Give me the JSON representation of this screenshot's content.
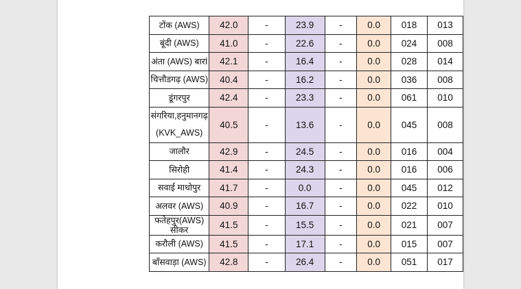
{
  "table": {
    "rows": [
      {
        "station": "टोंक (AWS)",
        "v1": "42.0",
        "v2": "-",
        "v3": "23.9",
        "v4": "-",
        "v5": "0.0",
        "v6": "018",
        "v7": "013"
      },
      {
        "station": "बूंदी (AWS)",
        "v1": "41.0",
        "v2": "-",
        "v3": "22.6",
        "v4": "-",
        "v5": "0.0",
        "v6": "024",
        "v7": "008"
      },
      {
        "station": "अंता (AWS) बारां",
        "v1": "42.1",
        "v2": "-",
        "v3": "16.4",
        "v4": "-",
        "v5": "0.0",
        "v6": "028",
        "v7": "014"
      },
      {
        "station": "चित्तौडगढ़ (AWS)",
        "v1": "40.4",
        "v2": "-",
        "v3": "16.2",
        "v4": "-",
        "v5": "0.0",
        "v6": "036",
        "v7": "008"
      },
      {
        "station": "डूंगरपुर",
        "v1": "42.4",
        "v2": "-",
        "v3": "23.3",
        "v4": "-",
        "v5": "0.0",
        "v6": "061",
        "v7": "010"
      },
      {
        "station": "संगरिया,हनुमानगढ़ (KVK_AWS)",
        "v1": "40.5",
        "v2": "-",
        "v3": "13.6",
        "v4": "-",
        "v5": "0.0",
        "v6": "045",
        "v7": "008"
      },
      {
        "station": "जालौर",
        "v1": "42.9",
        "v2": "-",
        "v3": "24.5",
        "v4": "-",
        "v5": "0.0",
        "v6": "016",
        "v7": "004"
      },
      {
        "station": "सिरोही",
        "v1": "41.4",
        "v2": "-",
        "v3": "24.3",
        "v4": "-",
        "v5": "0.0",
        "v6": "016",
        "v7": "006"
      },
      {
        "station": "सवाई माधोपुर",
        "v1": "41.7",
        "v2": "-",
        "v3": "0.0",
        "v4": "-",
        "v5": "0.0",
        "v6": "045",
        "v7": "012"
      },
      {
        "station": "अलवर (AWS)",
        "v1": "40.9",
        "v2": "-",
        "v3": "16.7",
        "v4": "-",
        "v5": "0.0",
        "v6": "022",
        "v7": "010"
      },
      {
        "station": "फतेहपुर(AWS) सीकर",
        "v1": "41.5",
        "v2": "-",
        "v3": "15.5",
        "v4": "-",
        "v5": "0.0",
        "v6": "021",
        "v7": "007"
      },
      {
        "station": "करौली (AWS)",
        "v1": "41.5",
        "v2": "-",
        "v3": "17.1",
        "v4": "-",
        "v5": "0.0",
        "v6": "015",
        "v7": "007"
      },
      {
        "station": "बाँसवाड़ा (AWS)",
        "v1": "42.8",
        "v2": "-",
        "v3": "26.4",
        "v4": "-",
        "v5": "0.0",
        "v6": "051",
        "v7": "017"
      }
    ]
  }
}
